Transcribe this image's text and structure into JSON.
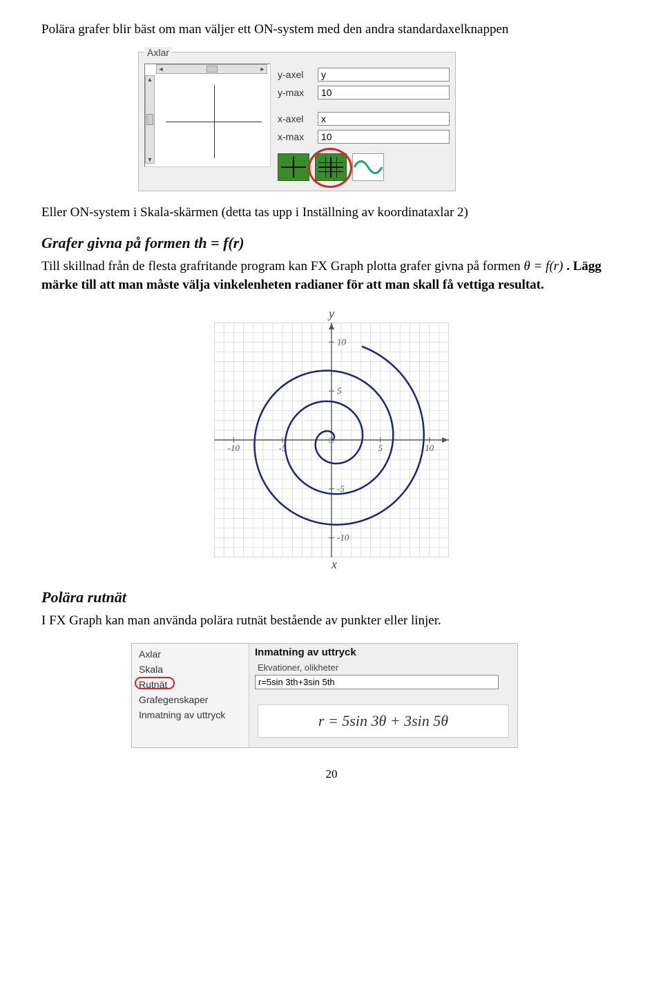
{
  "intro_text": "Polära grafer blir bäst om man väljer ett ON-system med den andra standardaxelknappen",
  "dialog1": {
    "group_label": "Axlar",
    "y_axis_label": "y-axel",
    "y_axis_value": "y",
    "y_max_label": "y-max",
    "y_max_value": "10",
    "x_axis_label": "x-axel",
    "x_axis_value": "x",
    "x_max_label": "x-max",
    "x_max_value": "10",
    "buttons": {
      "grid_color": "#3a8b2a",
      "circle_color": "#d22222"
    }
  },
  "after_dialog1": "Eller ON-system i Skala-skärmen (detta tas upp i Inställning av koordinataxlar 2)",
  "section1_heading": "Grafer givna på formen  th = f(r)",
  "section1_text_part1": "Till skillnad från de flesta grafritande program kan FX Graph plotta grafer givna på formen ",
  "section1_formula": "θ = f(r)",
  "section1_text_part2": ". Lägg märke till att man måste välja vinkelenheten radianer för att man skall få vettiga resultat.",
  "spiral": {
    "ylabel": "y",
    "xlabel": "x",
    "xlim": [
      -12,
      12
    ],
    "ylim": [
      -12,
      12
    ],
    "ticks_x": [
      -10,
      -5,
      5,
      10
    ],
    "ticks_y": [
      -10,
      -5,
      5,
      10
    ],
    "line_color": "#1a237e",
    "line_width": 2.5,
    "grid_color": "#cccccc",
    "axis_color": "#555555",
    "tick_fontsize": 13,
    "background_color": "#ffffff",
    "turns": 3.2,
    "r_per_theta": 0.5
  },
  "section2_heading": "Polära rutnät",
  "section2_text": "I FX Graph kan man använda polära rutnät bestående av punkter eller linjer.",
  "dialog2": {
    "sidebar_items": [
      "Axlar",
      "Skala",
      "Rutnät",
      "Grafegenskaper",
      "Inmatning av uttryck"
    ],
    "circled_index": 2,
    "right_title": "Inmatning av uttryck",
    "sub_label": "Ekvationer, olikheter",
    "input_value": "r=5sin 3th+3sin 5th",
    "rendered": "r = 5sin 3θ + 3sin 5θ",
    "circle_color": "#d22222"
  },
  "page_number": "20",
  "colors": {
    "body_text": "#000000",
    "background": "#ffffff"
  }
}
